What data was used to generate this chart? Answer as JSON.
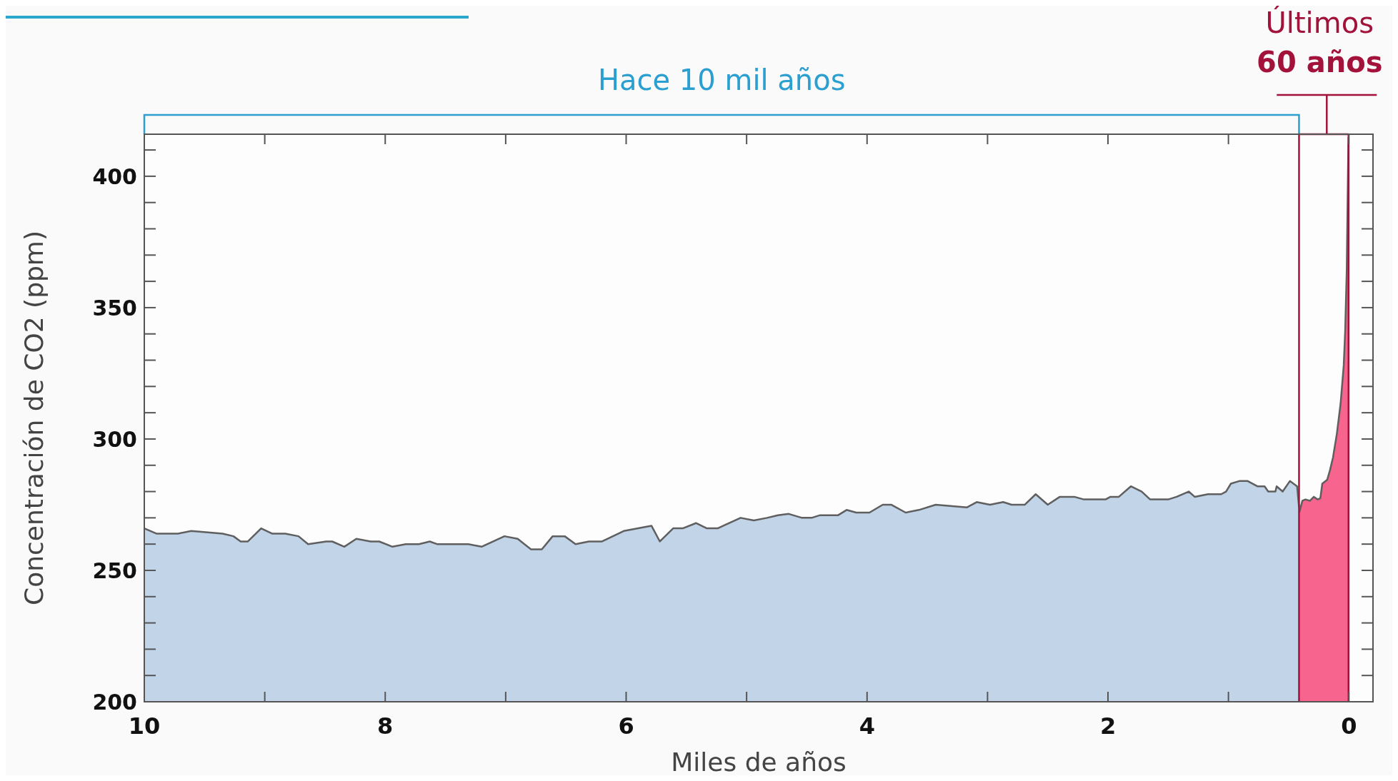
{
  "chart_data": {
    "type": "area",
    "xlabel": "Miles de años",
    "ylabel": "Concentración de CO2 (ppm)",
    "xlim": [
      10,
      -0.2
    ],
    "ylim": [
      200,
      416
    ],
    "xticks": [
      10,
      {
        "value": 9,
        "label": null
      },
      8,
      {
        "value": 7,
        "label": null
      },
      6,
      {
        "value": 5,
        "label": null
      },
      4,
      {
        "value": 3,
        "label": null
      },
      2,
      {
        "value": 1,
        "label": null
      },
      0
    ],
    "yticks": [
      200,
      {
        "value": 210,
        "label": null
      },
      {
        "value": 220,
        "label": null
      },
      {
        "value": 230,
        "label": null
      },
      {
        "value": 240,
        "label": null
      },
      250,
      {
        "value": 260,
        "label": null
      },
      {
        "value": 270,
        "label": null
      },
      {
        "value": 280,
        "label": null
      },
      {
        "value": 290,
        "label": null
      },
      300,
      {
        "value": 310,
        "label": null
      },
      {
        "value": 320,
        "label": null
      },
      {
        "value": 330,
        "label": null
      },
      {
        "value": 340,
        "label": null
      },
      350,
      {
        "value": 360,
        "label": null
      },
      {
        "value": 370,
        "label": null
      },
      {
        "value": 380,
        "label": null
      },
      {
        "value": 390,
        "label": null
      },
      400,
      {
        "value": 410,
        "label": null
      }
    ],
    "grid": false,
    "series": [
      {
        "color": "#c2d4e8",
        "x": [
          10,
          9.9,
          9.72,
          9.61,
          9.35,
          9.26,
          9.2,
          9.14,
          9.03,
          8.94,
          8.83,
          8.72,
          8.64,
          8.49,
          8.44,
          8.34,
          8.24,
          8.12,
          8.05,
          7.94,
          7.83,
          7.72,
          7.63,
          7.57,
          7.42,
          7.31,
          7.2,
          7.01,
          6.9,
          6.79,
          6.7,
          6.61,
          6.51,
          6.42,
          6.31,
          6.2,
          6.02,
          5.79,
          5.72,
          5.61,
          5.53,
          5.42,
          5.33,
          5.24,
          5.05,
          4.94,
          4.83,
          4.74,
          4.65,
          4.54,
          4.46,
          4.39,
          4.24,
          4.17,
          4.09,
          3.98,
          3.87,
          3.8,
          3.68,
          3.57,
          3.43,
          3.17,
          3.09,
          2.98,
          2.87,
          2.8,
          2.69,
          2.6,
          2.5,
          2.4,
          2.28,
          2.2,
          2.02,
          1.98,
          1.91,
          1.81,
          1.72,
          1.65,
          1.5,
          1.43,
          1.33,
          1.28,
          1.17,
          1.06,
          1.02,
          0.98,
          0.91,
          0.84,
          0.76,
          0.7,
          0.67,
          0.61,
          0.6,
          0.55,
          0.49,
          0.43,
          0.414
        ],
        "values": [
          266,
          264,
          264,
          265,
          264,
          263,
          261,
          261,
          266,
          264,
          264,
          263,
          260,
          261,
          261,
          259,
          262,
          261,
          261,
          259,
          260,
          260,
          261,
          260,
          260,
          260,
          259,
          263,
          262,
          258,
          258,
          263,
          263,
          260,
          261,
          261,
          265,
          267,
          261,
          266,
          266,
          268,
          266,
          266,
          270,
          269,
          270,
          271,
          271.5,
          270,
          270,
          271,
          271,
          273,
          272,
          272,
          275,
          275,
          272,
          273,
          275,
          274,
          276,
          275,
          276,
          275,
          275,
          279,
          275,
          278,
          278,
          277,
          277,
          278,
          278,
          282,
          280,
          277,
          277,
          278,
          280,
          278,
          279,
          279,
          280,
          283,
          284,
          284,
          282,
          282,
          280,
          280,
          282,
          280,
          284,
          282,
          274
        ]
      },
      {
        "color": "#f7648e",
        "x": [
          0.412,
          0.386,
          0.361,
          0.323,
          0.291,
          0.259,
          0.237,
          0.221,
          0.18,
          0.158,
          0.132,
          0.1,
          0.069,
          0.043,
          0.031,
          0.018,
          0.012,
          0.005,
          0.003
        ],
        "values": [
          272,
          276.5,
          277,
          276.5,
          278,
          277,
          277.5,
          283,
          284.5,
          288,
          293,
          302,
          313.5,
          328,
          341,
          364,
          386,
          411,
          415
        ]
      }
    ],
    "annotations": [
      "Hace 10 mil años",
      "Últimos 60 años"
    ],
    "ref_lines": [
      {
        "axis": "x",
        "value": 0.414,
        "color": "#a3123a"
      },
      {
        "axis": "x",
        "value": 0.003,
        "color": "#a3123a"
      }
    ]
  }
}
